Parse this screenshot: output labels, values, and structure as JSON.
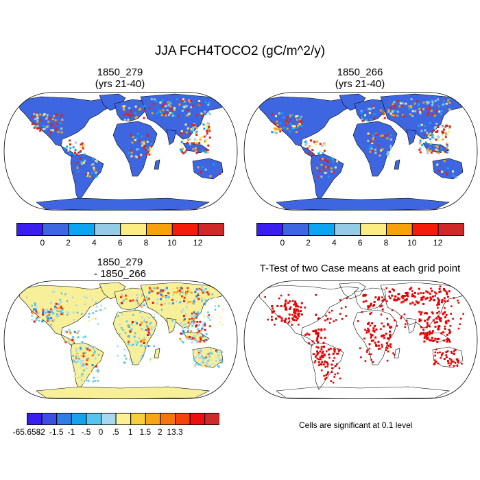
{
  "title": "JJA FCH4TOCO2 (gC/m^2/y)",
  "panels": [
    {
      "title_lines": [
        "1850_279",
        "(yrs 21-40)"
      ],
      "kind": "field"
    },
    {
      "title_lines": [
        "1850_266",
        "(yrs 21-40)"
      ],
      "kind": "field"
    },
    {
      "title_lines": [
        "1850_279",
        "- 1850_266"
      ],
      "kind": "difference"
    },
    {
      "title_lines": [
        "T-Test of two Case means at each grid point"
      ],
      "kind": "ttest"
    }
  ],
  "colorbar_top": {
    "colors": [
      "#3a1ef0",
      "#3d66e0",
      "#0ea5f0",
      "#96cbe6",
      "#fbed82",
      "#f7a20c",
      "#f41c08",
      "#cf2828"
    ],
    "labels": [
      "0",
      "2",
      "4",
      "6",
      "8",
      "10",
      "12"
    ]
  },
  "colorbar_diff": {
    "colors": [
      "#3a1ef0",
      "#3c4ee6",
      "#2e7ee8",
      "#17a2f0",
      "#57c4ef",
      "#a6d9ef",
      "#fbf093",
      "#f7cf3c",
      "#f7a417",
      "#f7750f",
      "#f4440a",
      "#ee1010",
      "#cd2a2a"
    ],
    "labels": [
      "-65.658",
      "-2",
      "-1.5",
      "-1",
      "-.5",
      "0",
      ".5",
      "1",
      "1.5",
      "2",
      "13.3"
    ]
  },
  "ttest_note": "Cells are significant at 0.1 level",
  "colors": {
    "land_base": "#3d66e0",
    "diff_base": "#f8f098",
    "significant": "#e60000"
  }
}
